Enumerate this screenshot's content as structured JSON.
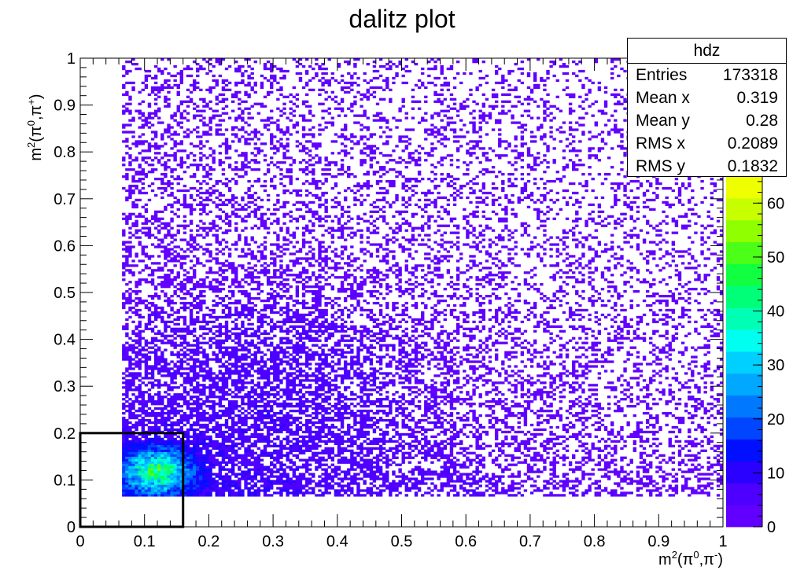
{
  "chart_data": {
    "type": "heatmap",
    "title": "dalitz plot",
    "xlabel_base": "m",
    "xlabel_sup": "2",
    "xlabel_rest": "(π",
    "xlabel_sup2": "0",
    "xlabel_mid": ",π",
    "xlabel_sup3": "-",
    "xlabel_end": ")",
    "ylabel_base": "m",
    "ylabel_sup": "2",
    "ylabel_rest": "(π",
    "ylabel_sup2": "0",
    "ylabel_mid": ",π",
    "ylabel_sup3": "+",
    "ylabel_end": ")",
    "xlim": [
      0,
      1
    ],
    "ylim": [
      0,
      1
    ],
    "x_ticks": [
      "0",
      "0.1",
      "0.2",
      "0.3",
      "0.4",
      "0.5",
      "0.6",
      "0.7",
      "0.8",
      "0.9",
      "1"
    ],
    "y_ticks": [
      "0",
      "0.1",
      "0.2",
      "0.3",
      "0.4",
      "0.5",
      "0.6",
      "0.7",
      "0.8",
      "0.9",
      "1"
    ],
    "z_ticks": [
      "0",
      "10",
      "20",
      "30",
      "40",
      "50",
      "60"
    ],
    "zlim": [
      0,
      65
    ],
    "highlight_box": {
      "x": [
        0,
        0.16
      ],
      "y": [
        0,
        0.2
      ]
    },
    "stats": {
      "name": "hdz",
      "rows": [
        {
          "key": "Entries",
          "value": "173318"
        },
        {
          "key": "Mean x",
          "value": "0.319"
        },
        {
          "key": "Mean y",
          "value": "0.28"
        },
        {
          "key": "RMS x",
          "value": "0.2089"
        },
        {
          "key": "RMS y",
          "value": "0.1832"
        }
      ]
    },
    "palette": [
      "#6100ff",
      "#4d00ff",
      "#2a00ff",
      "#0010ff",
      "#0046ff",
      "#0078ff",
      "#00a8ff",
      "#00d0ff",
      "#00fff0",
      "#00ffb4",
      "#00ff78",
      "#10ff40",
      "#4cff18",
      "#90ff00",
      "#c8ff00",
      "#f0ff00"
    ]
  }
}
